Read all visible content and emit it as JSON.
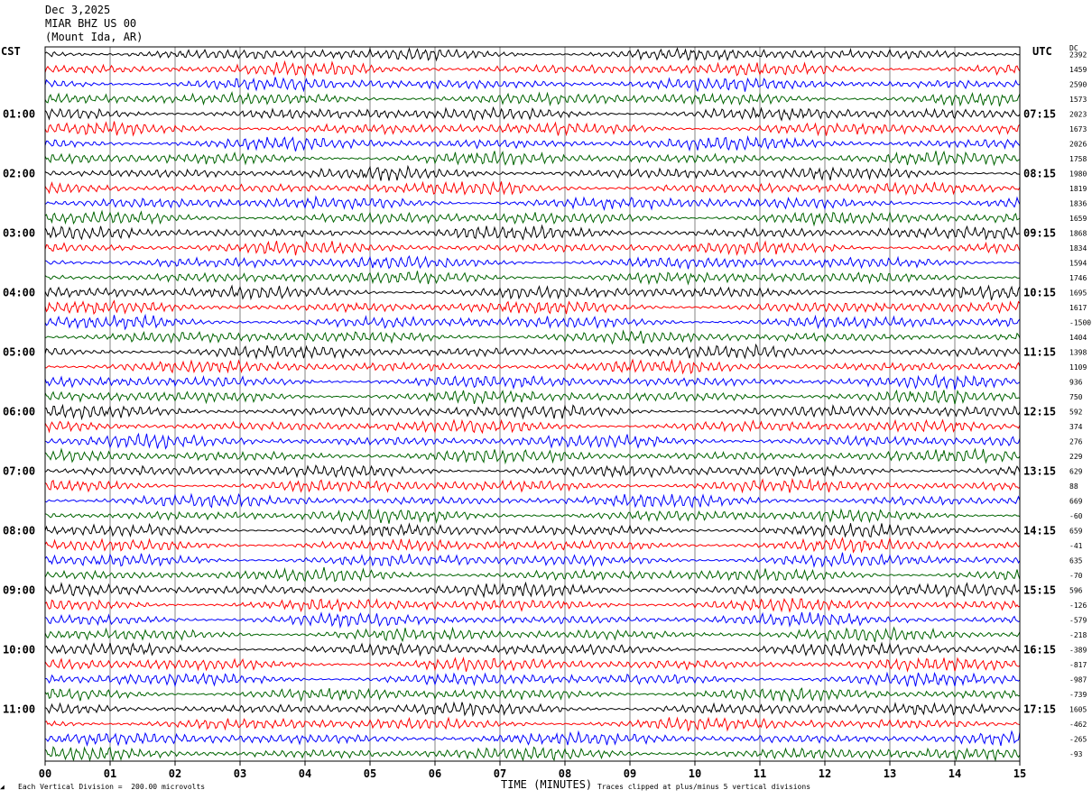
{
  "header": {
    "date": "Dec 3,2025",
    "station": "MIAR BHZ US 00",
    "location": "(Mount Ida, AR)"
  },
  "labels": {
    "left_tz": "CST",
    "right_tz": "UTC",
    "right_top": "DC",
    "x_title": "TIME (MINUTES)",
    "scale_note": "Each Vertical Division =  200.00 microvolts",
    "clip_note": "Traces clipped at plus/minus 5 vertical divisions"
  },
  "chart_data": {
    "type": "line",
    "title": "",
    "xlabel": "TIME (MINUTES)",
    "xlim": [
      0,
      15
    ],
    "x_ticks": [
      "00",
      "01",
      "02",
      "03",
      "04",
      "05",
      "06",
      "07",
      "08",
      "09",
      "10",
      "11",
      "12",
      "13",
      "14",
      "15"
    ],
    "trace_colors": [
      "#000000",
      "#ff0000",
      "#0000ff",
      "#006400"
    ],
    "grid": true,
    "n_traces": 48,
    "left_time_labels": [
      "01:00",
      "02:00",
      "03:00",
      "04:00",
      "05:00",
      "06:00",
      "07:00",
      "08:00",
      "09:00",
      "10:00",
      "11:00"
    ],
    "right_time_labels": [
      "07:15",
      "08:15",
      "09:15",
      "10:15",
      "11:15",
      "12:15",
      "13:15",
      "14:15",
      "15:15",
      "16:15",
      "17:15"
    ],
    "dc_offsets": [
      "2392",
      "1459",
      "2590",
      "1573",
      "2023",
      "1673",
      "2026",
      "1758",
      "1980",
      "1819",
      "1836",
      "1659",
      "1868",
      "1834",
      "1594",
      "1746",
      "1695",
      "1617",
      "-1500",
      "1404",
      "1398",
      "1109",
      "936",
      "750",
      "592",
      "374",
      "276",
      "229",
      "629",
      "88",
      "669",
      "-60",
      "659",
      "-41",
      "635",
      "-70",
      "596",
      "-126",
      "-579",
      "-218",
      "-389",
      "-817",
      "-987",
      "-739",
      "1605",
      "-462",
      "-265",
      "-93"
    ]
  }
}
